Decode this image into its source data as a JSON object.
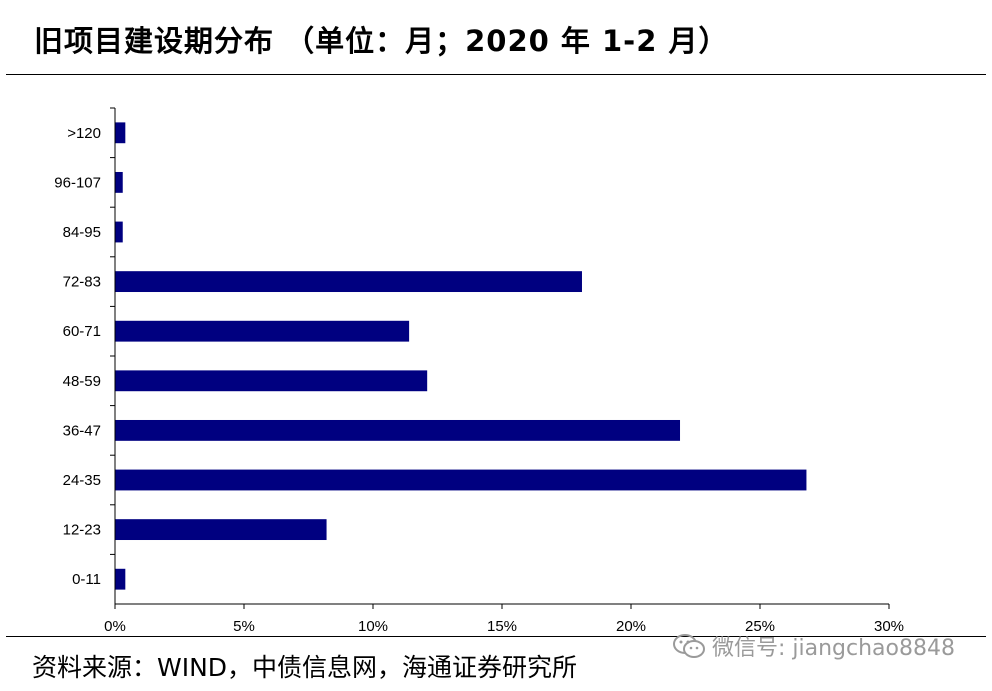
{
  "header": {
    "title": "旧项目建设期分布 （单位：月；2020 年 1-2 月）"
  },
  "footer": {
    "source": "资料来源：WIND，中债信息网，海通证券研究所",
    "watermark": "微信号: jiangchao8848",
    "watermark_icon": "wechat-icon"
  },
  "chart_data": {
    "type": "bar",
    "orientation": "horizontal",
    "title": "旧项目建设期分布 （单位：月；2020 年 1-2 月）",
    "categories": [
      ">120",
      "96-107",
      "84-95",
      "72-83",
      "60-71",
      "48-59",
      "36-47",
      "24-35",
      "12-23",
      "0-11"
    ],
    "values": [
      0.4,
      0.3,
      0.3,
      18.1,
      11.4,
      12.1,
      21.9,
      26.8,
      8.2,
      0.4
    ],
    "value_unit": "%",
    "xlim": [
      0,
      30
    ],
    "xticks": [
      "0%",
      "5%",
      "10%",
      "15%",
      "20%",
      "25%",
      "30%"
    ],
    "xlabel": "",
    "ylabel": "",
    "grid": false,
    "legend": "none",
    "bar_color": "#000080"
  }
}
